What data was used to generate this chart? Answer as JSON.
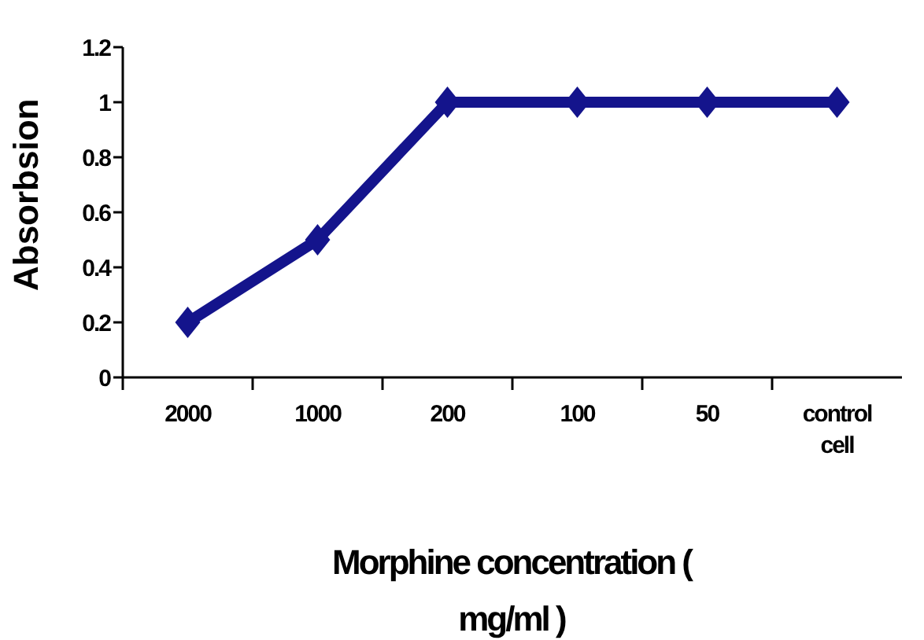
{
  "chart_data": {
    "type": "line",
    "xlabel": "Morphine concentration ( mg/ml )",
    "ylabel": "Absorbsion",
    "categories": [
      "2000",
      "1000",
      "200",
      "100",
      "50",
      "control cell"
    ],
    "series": [
      {
        "color": "#14148c",
        "values": [
          0.2,
          0.5,
          1,
          1,
          1,
          1
        ]
      }
    ],
    "ylim": [
      0,
      1.2
    ],
    "yticks": [
      0,
      0.2,
      0.4,
      0.6,
      0.8,
      1,
      1.2
    ],
    "grid": false,
    "legend": false,
    "marker": "diamond",
    "line_style": "solid"
  }
}
